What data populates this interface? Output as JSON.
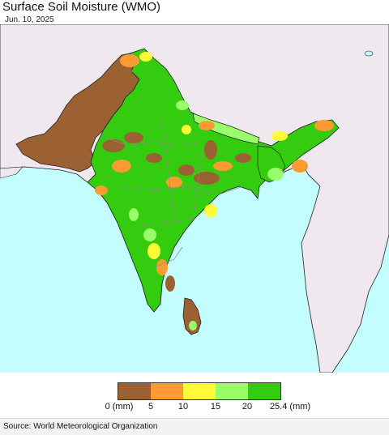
{
  "header": {
    "title": "Surface Soil Moisture (WMO)",
    "date": "Jun. 10, 2025"
  },
  "map": {
    "region": "South Asia",
    "variable": "Surface Soil Moisture",
    "colors": {
      "sea": "#c4fdfe",
      "land_outside": "#efe9ef",
      "border": "#222222",
      "internal_border": "#8a8a8a"
    }
  },
  "legend": {
    "bins": [
      {
        "from": 0,
        "to": 5,
        "color": "#9c6133"
      },
      {
        "from": 5,
        "to": 10,
        "color": "#fd9b33"
      },
      {
        "from": 10,
        "to": 15,
        "color": "#fffb36"
      },
      {
        "from": 15,
        "to": 20,
        "color": "#9afe6a"
      },
      {
        "from": 20,
        "to": 25.4,
        "color": "#33cc0e"
      }
    ],
    "ticks": [
      "0 (mm)",
      "5",
      "10",
      "15",
      "20",
      "25.4 (mm)"
    ]
  },
  "footer": {
    "source": "Source: World Meteorological Organization"
  }
}
